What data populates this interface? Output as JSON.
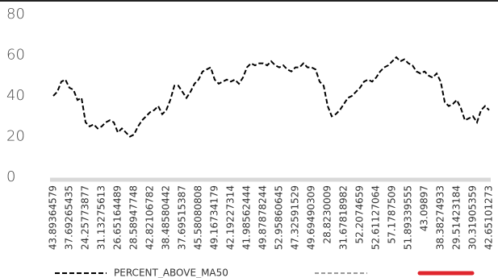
{
  "chart_data": {
    "type": "line",
    "categories": [
      "43.89364579",
      null,
      null,
      null,
      "37.69265435",
      null,
      null,
      null,
      "24.25773877",
      null,
      null,
      null,
      "31.13275613",
      null,
      null,
      null,
      "26.65164489",
      null,
      null,
      null,
      "28.58947748",
      null,
      null,
      null,
      "42.82106782",
      null,
      null,
      null,
      "38.48580442",
      null,
      null,
      null,
      "37.69515387",
      null,
      null,
      null,
      "45.58080808",
      null,
      null,
      null,
      "49.16734179",
      null,
      null,
      null,
      "42.19227314",
      null,
      null,
      null,
      "41.98562444",
      null,
      null,
      null,
      "49.87878244",
      null,
      null,
      null,
      "52.95860645",
      null,
      null,
      null,
      "47.32591529",
      null,
      null,
      null,
      "49.69490309",
      null,
      null,
      null,
      "28.8230009",
      null,
      null,
      null,
      "31.67818982",
      null,
      null,
      null,
      "52.2074659",
      null,
      null,
      null,
      "52.61127064",
      null,
      null,
      null,
      "57.1787509",
      null,
      null,
      null,
      "51.89339555",
      null,
      null,
      null,
      "43.09897",
      null,
      null,
      null,
      "38.38274933",
      null,
      null,
      null,
      "29.51423184",
      null,
      null,
      null,
      "30.31905359",
      null,
      null,
      null,
      "42.65101273"
    ],
    "series": [
      {
        "name": "PERCENT_ABOVE_MA50",
        "color": "#000000",
        "values": [
          40,
          42,
          47,
          48,
          44,
          43,
          38,
          39,
          27,
          25,
          26,
          24,
          25,
          27,
          28,
          27,
          22,
          24,
          22,
          20,
          21,
          25,
          28,
          30,
          32,
          33,
          35,
          31,
          33,
          38,
          45,
          45,
          42,
          39,
          42,
          46,
          48,
          52,
          53,
          54,
          48,
          46,
          47,
          48,
          47,
          48,
          46,
          49,
          54,
          56,
          55,
          56,
          56,
          55,
          57,
          55,
          54,
          55,
          53,
          52,
          54,
          54,
          56,
          54,
          54,
          53,
          47,
          45,
          35,
          30,
          31,
          33,
          36,
          39,
          40,
          42,
          44,
          47,
          48,
          47,
          49,
          52,
          54,
          55,
          57,
          59,
          57,
          58,
          56,
          55,
          52,
          51,
          52,
          50,
          49,
          51,
          47,
          37,
          35,
          36,
          38,
          34,
          28,
          29,
          30,
          27,
          33,
          35,
          33
        ]
      }
    ],
    "ylim": [
      0,
      80
    ],
    "yticks": [
      0,
      20,
      40,
      60,
      80
    ],
    "grid": false
  }
}
